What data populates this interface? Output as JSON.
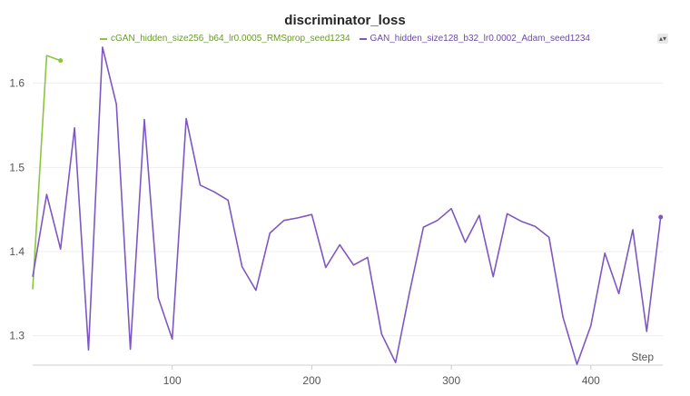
{
  "chart_data": {
    "type": "line",
    "title": "discriminator_loss",
    "xlabel": "Step",
    "ylabel": "",
    "xlim": [
      0,
      458
    ],
    "ylim": [
      1.265,
      1.645
    ],
    "x_ticks": [
      100,
      200,
      300,
      400
    ],
    "y_ticks": [
      1.3,
      1.4,
      1.5,
      1.6
    ],
    "grid": true,
    "legend_position": "top-center",
    "series": [
      {
        "name": "cGAN_hidden_size256_b64_lr0.0005_RMSprop_seed1234",
        "color": "#8cc63f",
        "x": [
          0,
          10,
          20
        ],
        "y": [
          1.355,
          1.633,
          1.627
        ]
      },
      {
        "name": "GAN_hidden_size128_b32_lr0.0002_Adam_seed1234",
        "color": "#7e57c2",
        "x": [
          0,
          10,
          20,
          30,
          40,
          50,
          60,
          70,
          80,
          90,
          100,
          110,
          120,
          130,
          140,
          150,
          160,
          170,
          180,
          190,
          200,
          210,
          220,
          230,
          240,
          250,
          260,
          270,
          280,
          290,
          300,
          310,
          320,
          330,
          340,
          350,
          360,
          370,
          380,
          390,
          400,
          410,
          420,
          430,
          440,
          450
        ],
        "y": [
          1.37,
          1.468,
          1.403,
          1.547,
          1.283,
          1.643,
          1.575,
          1.284,
          1.557,
          1.345,
          1.296,
          1.558,
          1.479,
          1.471,
          1.461,
          1.382,
          1.354,
          1.422,
          1.437,
          1.44,
          1.444,
          1.381,
          1.408,
          1.384,
          1.393,
          1.302,
          1.268,
          1.351,
          1.429,
          1.437,
          1.451,
          1.411,
          1.443,
          1.37,
          1.445,
          1.436,
          1.43,
          1.417,
          1.322,
          1.266,
          1.312,
          1.398,
          1.35,
          1.426,
          1.305,
          1.441
        ]
      }
    ]
  },
  "ui": {
    "legend_toggle_icon": "sort-arrows-icon"
  }
}
